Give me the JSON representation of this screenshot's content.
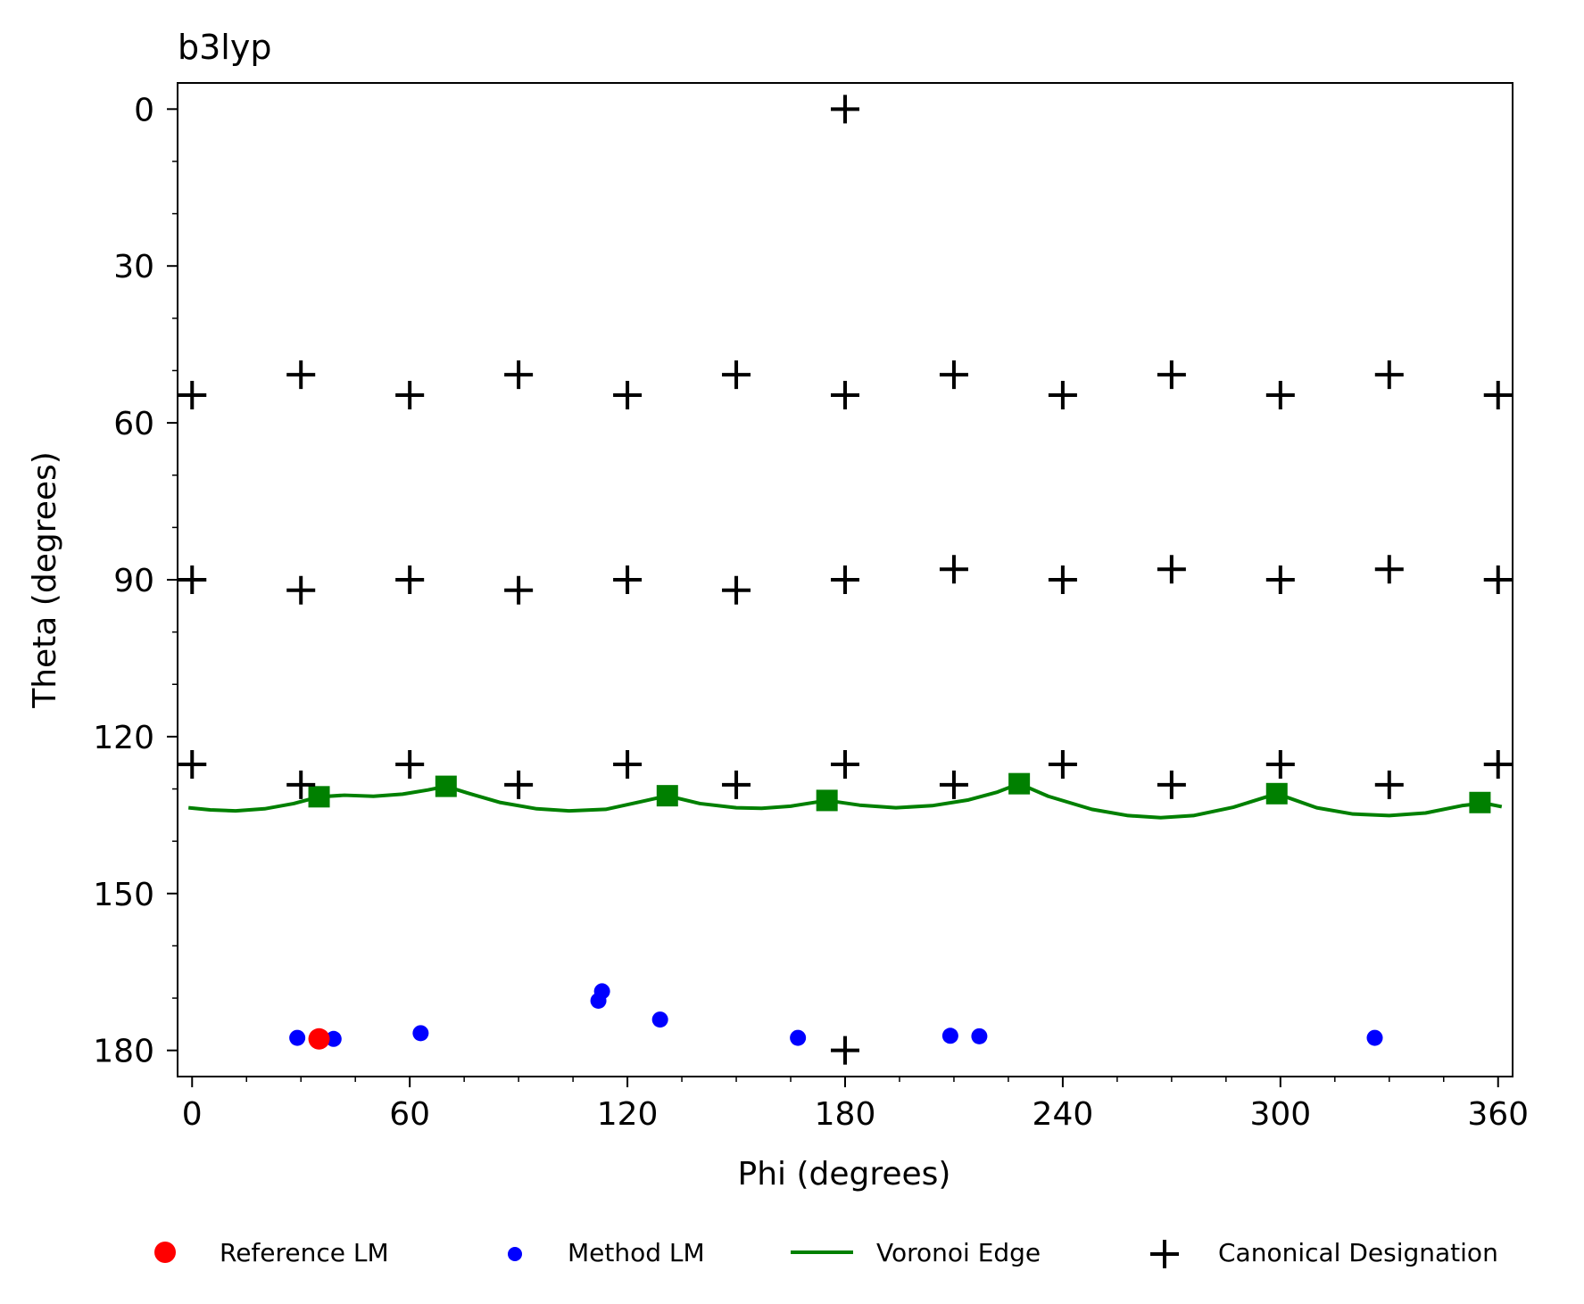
{
  "chart_data": {
    "type": "scatter",
    "title": "b3lyp",
    "xlabel": "Phi (degrees)",
    "ylabel": "Theta (degrees)",
    "xlim": [
      -4,
      364
    ],
    "ylim": [
      -5,
      185
    ],
    "y_inverted": true,
    "x_ticks": [
      0,
      60,
      120,
      180,
      240,
      300,
      360
    ],
    "x_tick_labels": [
      "0",
      "60",
      "120",
      "180",
      "240",
      "300",
      "360"
    ],
    "y_ticks": [
      0,
      30,
      60,
      90,
      120,
      150,
      180
    ],
    "y_tick_labels": [
      "0",
      "30",
      "60",
      "90",
      "120",
      "150",
      "180"
    ],
    "grid": false,
    "legend_placement": "bottom",
    "legend": [
      {
        "name": "Reference LM",
        "marker": "circle-large",
        "color": "#ff0000"
      },
      {
        "name": "Method LM",
        "marker": "circle",
        "color": "#0000ff"
      },
      {
        "name": "Voronoi Edge",
        "marker": "line",
        "color": "#008000"
      },
      {
        "name": "Canonical Designation",
        "marker": "plus",
        "color": "#000000"
      }
    ],
    "series": [
      {
        "name": "Canonical Designation",
        "type": "scatter",
        "marker": "plus",
        "color": "#000000",
        "points": [
          [
            180,
            0
          ],
          [
            0,
            54.7
          ],
          [
            30,
            50.8
          ],
          [
            60,
            54.7
          ],
          [
            90,
            50.8
          ],
          [
            120,
            54.7
          ],
          [
            150,
            50.8
          ],
          [
            180,
            54.7
          ],
          [
            210,
            50.8
          ],
          [
            240,
            54.7
          ],
          [
            270,
            50.8
          ],
          [
            300,
            54.7
          ],
          [
            330,
            50.8
          ],
          [
            360,
            54.7
          ],
          [
            0,
            90
          ],
          [
            30,
            92
          ],
          [
            60,
            90
          ],
          [
            90,
            92
          ],
          [
            120,
            90
          ],
          [
            150,
            92
          ],
          [
            180,
            90
          ],
          [
            210,
            88
          ],
          [
            240,
            90
          ],
          [
            270,
            88
          ],
          [
            300,
            90
          ],
          [
            330,
            88
          ],
          [
            360,
            90
          ],
          [
            0,
            125.3
          ],
          [
            30,
            129.2
          ],
          [
            60,
            125.3
          ],
          [
            90,
            129.2
          ],
          [
            120,
            125.3
          ],
          [
            150,
            129.2
          ],
          [
            180,
            125.3
          ],
          [
            210,
            129.2
          ],
          [
            240,
            125.3
          ],
          [
            270,
            129.2
          ],
          [
            300,
            125.3
          ],
          [
            330,
            129.2
          ],
          [
            360,
            125.3
          ],
          [
            180,
            180
          ]
        ]
      },
      {
        "name": "Method LM",
        "type": "scatter",
        "marker": "circle",
        "color": "#0000ff",
        "points": [
          [
            29,
            177.6
          ],
          [
            39,
            177.8
          ],
          [
            63,
            176.7
          ],
          [
            112,
            170.5
          ],
          [
            113,
            168.7
          ],
          [
            129,
            174.1
          ],
          [
            167,
            177.6
          ],
          [
            209,
            177.2
          ],
          [
            217,
            177.3
          ],
          [
            326,
            177.6
          ]
        ]
      },
      {
        "name": "Reference LM",
        "type": "scatter",
        "marker": "circle-large",
        "color": "#ff0000",
        "points": [
          [
            35,
            177.8
          ]
        ]
      },
      {
        "name": "Voronoi Edge",
        "type": "line",
        "color": "#008000",
        "points": [
          [
            -1,
            133.6
          ],
          [
            5,
            134
          ],
          [
            12,
            134.2
          ],
          [
            20,
            133.8
          ],
          [
            28,
            132.8
          ],
          [
            35,
            131.5
          ],
          [
            42,
            131.2
          ],
          [
            50,
            131.4
          ],
          [
            58,
            131
          ],
          [
            65,
            130.2
          ],
          [
            70,
            129.5
          ],
          [
            76,
            130.8
          ],
          [
            85,
            132.6
          ],
          [
            95,
            133.8
          ],
          [
            104,
            134.2
          ],
          [
            114,
            133.9
          ],
          [
            124,
            132.4
          ],
          [
            131,
            131.3
          ],
          [
            140,
            132.8
          ],
          [
            150,
            133.6
          ],
          [
            157,
            133.7
          ],
          [
            165,
            133.3
          ],
          [
            175,
            132.2
          ],
          [
            184,
            133.1
          ],
          [
            194,
            133.6
          ],
          [
            204,
            133.2
          ],
          [
            214,
            132.1
          ],
          [
            222,
            130.6
          ],
          [
            228,
            129
          ],
          [
            236,
            131.4
          ],
          [
            248,
            133.9
          ],
          [
            258,
            135.1
          ],
          [
            267,
            135.5
          ],
          [
            276,
            135.1
          ],
          [
            287,
            133.5
          ],
          [
            299,
            130.9
          ],
          [
            310,
            133.6
          ],
          [
            320,
            134.8
          ],
          [
            330,
            135.1
          ],
          [
            340,
            134.6
          ],
          [
            350,
            133.2
          ],
          [
            356,
            132.7
          ],
          [
            361,
            133.4
          ]
        ]
      },
      {
        "name": "Voronoi Vertex",
        "type": "scatter",
        "marker": "square",
        "color": "#008000",
        "points": [
          [
            35,
            131.5
          ],
          [
            70,
            129.5
          ],
          [
            131,
            131.3
          ],
          [
            175,
            132.2
          ],
          [
            228,
            129
          ],
          [
            299,
            130.9
          ],
          [
            355,
            132.6
          ]
        ]
      }
    ]
  }
}
